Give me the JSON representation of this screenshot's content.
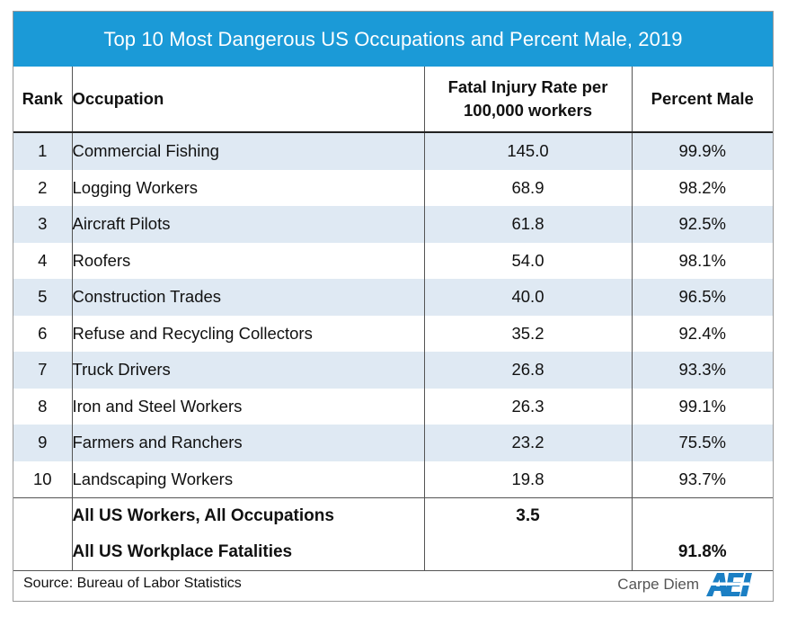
{
  "chart_data": {
    "type": "table",
    "title": "Top 10 Most Dangerous US Occupations and Percent Male, 2019",
    "columns": [
      "Rank",
      "Occupation",
      "Fatal Injury Rate per 100,000 workers",
      "Percent Male"
    ],
    "header": {
      "rank": "Rank",
      "occupation": "Occupation",
      "rate_line1": "Fatal Injury Rate per",
      "rate_line2": "100,000 workers",
      "male": "Percent Male"
    },
    "rows": [
      {
        "rank": "1",
        "occupation": "Commercial Fishing",
        "rate": "145.0",
        "male": "99.9%"
      },
      {
        "rank": "2",
        "occupation": "Logging Workers",
        "rate": "68.9",
        "male": "98.2%"
      },
      {
        "rank": "3",
        "occupation": "Aircraft Pilots",
        "rate": "61.8",
        "male": "92.5%"
      },
      {
        "rank": "4",
        "occupation": "Roofers",
        "rate": "54.0",
        "male": "98.1%"
      },
      {
        "rank": "5",
        "occupation": "Construction Trades",
        "rate": "40.0",
        "male": "96.5%"
      },
      {
        "rank": "6",
        "occupation": "Refuse and Recycling Collectors",
        "rate": "35.2",
        "male": "92.4%"
      },
      {
        "rank": "7",
        "occupation": "Truck Drivers",
        "rate": "26.8",
        "male": "93.3%"
      },
      {
        "rank": "8",
        "occupation": "Iron and Steel Workers",
        "rate": "26.3",
        "male": "99.1%"
      },
      {
        "rank": "9",
        "occupation": "Farmers and Ranchers",
        "rate": "23.2",
        "male": "75.5%"
      },
      {
        "rank": "10",
        "occupation": "Landscaping Workers",
        "rate": "19.8",
        "male": "93.7%"
      }
    ],
    "summary": [
      {
        "rank": "",
        "occupation": "All US Workers, All Occupations",
        "rate": "3.5",
        "male": ""
      },
      {
        "rank": "",
        "occupation": "All US Workplace Fatalities",
        "rate": "",
        "male": "91.8%"
      }
    ]
  },
  "footer": {
    "source": "Source: Bureau of Labor Statistics",
    "brand": "Carpe Diem",
    "logo": "AEI"
  },
  "colors": {
    "title_bg": "#1b9ad7",
    "stripe": "#dfe9f3",
    "logo_blue": "#1b7fc4"
  },
  "icons": {
    "logo": "aei-logo"
  }
}
